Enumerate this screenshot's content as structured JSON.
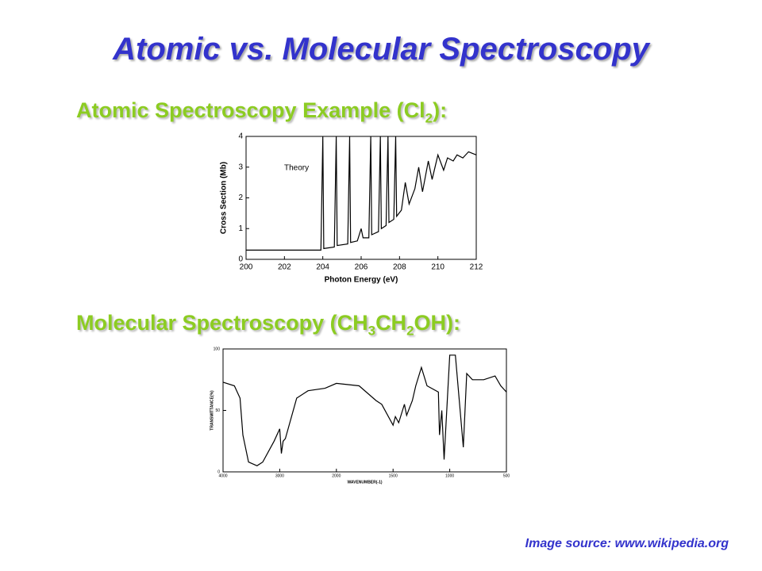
{
  "title": "Atomic vs. Molecular Spectroscopy",
  "heading1": [
    "Atomic Spectroscopy Example (Cl",
    "2",
    "):"
  ],
  "heading2": [
    "Molecular Spectroscopy (CH",
    "3",
    "CH",
    "2",
    "OH):"
  ],
  "source": "Image source: www.wikipedia.org",
  "chart_data": [
    {
      "type": "line",
      "xlabel": "Photon Energy (eV)",
      "ylabel": "Cross Section (Mb)",
      "annotation": "Theory",
      "xlim": [
        200,
        212
      ],
      "xticks": [
        200,
        202,
        204,
        206,
        208,
        210,
        212
      ],
      "ylim": [
        0,
        4
      ],
      "yticks": [
        0,
        1,
        2,
        3,
        4
      ],
      "color": "#000000",
      "x": [
        200,
        203.9,
        204.0,
        204.05,
        204.6,
        204.7,
        204.75,
        205.3,
        205.4,
        205.45,
        205.8,
        206.0,
        206.1,
        206.4,
        206.5,
        206.55,
        206.9,
        207.0,
        207.05,
        207.3,
        207.4,
        207.45,
        207.7,
        207.8,
        207.85,
        208.1,
        208.3,
        208.5,
        208.8,
        209.0,
        209.2,
        209.5,
        209.7,
        210.0,
        210.3,
        210.5,
        210.8,
        211.0,
        211.3,
        211.6,
        212
      ],
      "values": [
        0.3,
        0.3,
        4,
        0.35,
        0.4,
        4,
        0.45,
        0.5,
        4,
        0.55,
        0.6,
        1.0,
        0.7,
        0.7,
        4,
        0.8,
        0.9,
        4,
        1.0,
        1.1,
        4,
        1.2,
        1.3,
        4,
        1.4,
        1.6,
        2.5,
        1.8,
        2.3,
        3.0,
        2.2,
        3.2,
        2.6,
        3.4,
        2.9,
        3.3,
        3.2,
        3.4,
        3.3,
        3.5,
        3.4
      ]
    },
    {
      "type": "line",
      "xlabel": "WAVENUMBER(-1)",
      "ylabel": "TRANSMITTANCE(%)",
      "xlim": [
        4000,
        500
      ],
      "xticks": [
        4000,
        3000,
        2000,
        1500,
        1000,
        500
      ],
      "ylim": [
        0,
        100
      ],
      "yticks": [
        0,
        50,
        100
      ],
      "color": "#000000",
      "x": [
        4000,
        3800,
        3700,
        3650,
        3550,
        3400,
        3300,
        3100,
        3000,
        2970,
        2940,
        2900,
        2700,
        2500,
        2200,
        2000,
        1800,
        1650,
        1600,
        1500,
        1480,
        1450,
        1400,
        1380,
        1330,
        1300,
        1250,
        1200,
        1100,
        1090,
        1070,
        1050,
        1000,
        950,
        880,
        850,
        800,
        700,
        600,
        550,
        500
      ],
      "values": [
        73,
        70,
        60,
        30,
        8,
        5,
        8,
        25,
        35,
        15,
        25,
        27,
        60,
        66,
        68,
        72,
        70,
        58,
        55,
        38,
        45,
        40,
        55,
        46,
        58,
        70,
        85,
        70,
        65,
        30,
        50,
        10,
        95,
        95,
        20,
        80,
        75,
        75,
        78,
        70,
        65
      ]
    }
  ]
}
